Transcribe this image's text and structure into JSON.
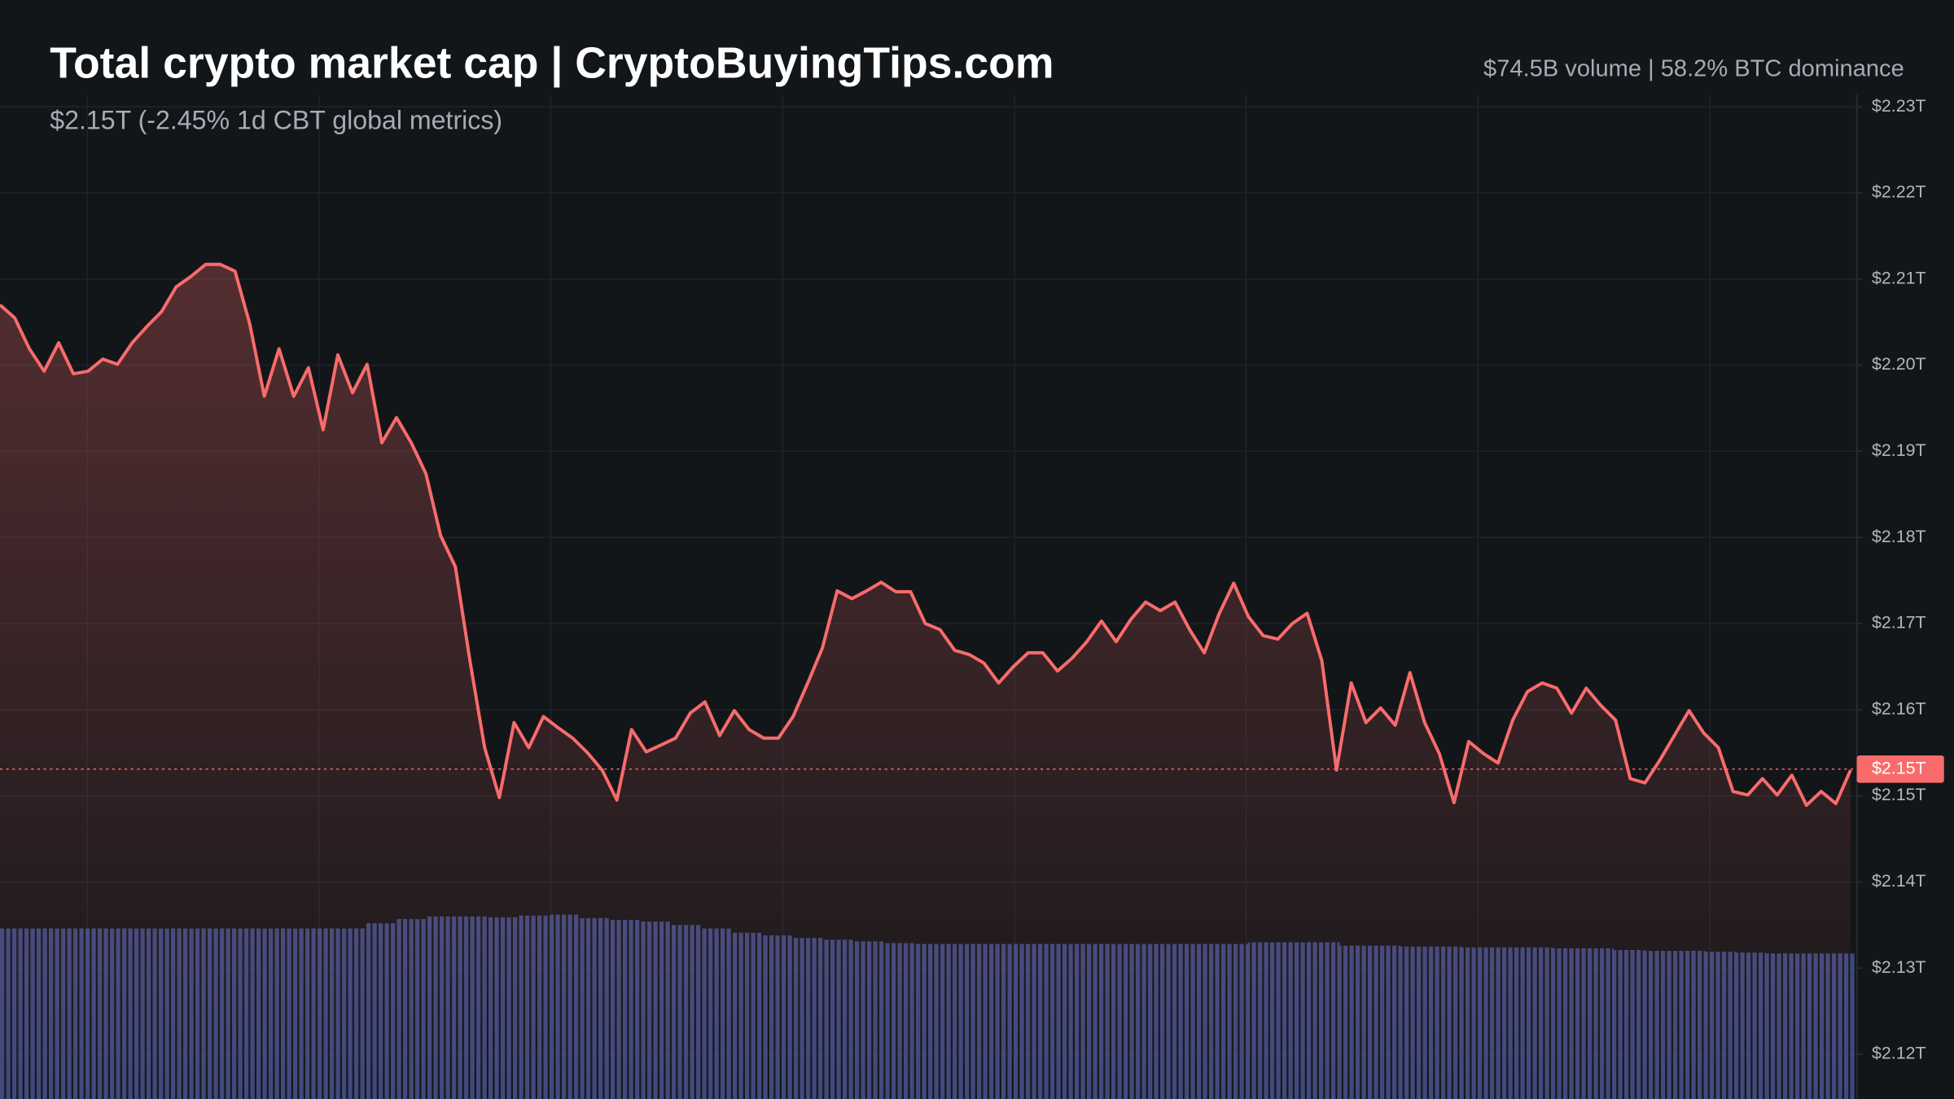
{
  "chart_data": {
    "type": "area",
    "title": "Total crypto market cap | CryptoBuyingTips.com",
    "subtitle": "$2.15T (-2.45% 1d CBT global metrics)",
    "stats": "$74.5B volume | 58.2% BTC dominance",
    "color": "#f96b6b",
    "values": [
      2.207,
      2.2055,
      2.2019,
      2.1993,
      2.2026,
      2.199,
      2.1993,
      2.2007,
      2.2001,
      2.2026,
      2.2045,
      2.2062,
      2.2091,
      2.2103,
      2.2117,
      2.2117,
      2.2109,
      2.2048,
      2.1964,
      2.2019,
      2.1964,
      2.1997,
      2.1925,
      2.2012,
      2.1968,
      2.2001,
      2.191,
      2.1939,
      2.191,
      2.1874,
      2.1802,
      2.1766,
      2.1657,
      2.1556,
      2.1498,
      2.1585,
      2.1556,
      2.1592,
      2.1579,
      2.1567,
      2.155,
      2.153,
      2.1495,
      2.1577,
      2.1551,
      2.1559,
      2.1567,
      2.1596,
      2.1609,
      2.157,
      2.1599,
      2.1577,
      2.1567,
      2.1567,
      2.1592,
      2.1631,
      2.1672,
      2.1738,
      2.1729,
      2.1738,
      2.1748,
      2.1737,
      2.1737,
      2.17,
      2.1693,
      2.1669,
      2.1664,
      2.1654,
      2.1631,
      2.165,
      2.1666,
      2.1666,
      2.1645,
      2.166,
      2.1679,
      2.1703,
      2.1679,
      2.1705,
      2.1725,
      2.1715,
      2.1725,
      2.1693,
      2.1666,
      2.1711,
      2.1747,
      2.1708,
      2.1686,
      2.1682,
      2.17,
      2.1712,
      2.1657,
      2.153,
      2.1631,
      2.1585,
      2.1602,
      2.1582,
      2.1643,
      2.1585,
      2.1549,
      2.1492,
      2.1563,
      2.1549,
      2.1538,
      2.1588,
      2.1621,
      2.1631,
      2.1625,
      2.1596,
      2.1625,
      2.1605,
      2.1588,
      2.152,
      2.1515,
      2.1541,
      2.157,
      2.1599,
      2.1573,
      2.1556,
      2.1505,
      2.1501,
      2.152,
      2.1501,
      2.1524,
      2.1489,
      2.1505,
      2.1491,
      2.153
    ],
    "volume": {
      "color": "#3d4c84",
      "values": [
        2.1346,
        2.1346,
        2.1346,
        2.1346,
        2.1346,
        2.1346,
        2.1346,
        2.1346,
        2.1346,
        2.1346,
        2.1346,
        2.1346,
        2.1352,
        2.1357,
        2.136,
        2.136,
        2.1359,
        2.1361,
        2.1362,
        2.1358,
        2.1356,
        2.1354,
        2.135,
        2.1346,
        2.1341,
        2.1338,
        2.1335,
        2.1333,
        2.1331,
        2.1329,
        2.1328,
        2.1328,
        2.1328,
        2.1328,
        2.1328,
        2.1328,
        2.1328,
        2.1328,
        2.1328,
        2.1328,
        2.1328,
        2.133,
        2.133,
        2.133,
        2.1326,
        2.1326,
        2.1325,
        2.1325,
        2.1324,
        2.1324,
        2.1324,
        2.1323,
        2.1323,
        2.1321,
        2.132,
        2.132,
        2.1319,
        2.1318,
        2.1317,
        2.1317,
        2.1317
      ]
    },
    "last_price": {
      "value": 2.1531,
      "label": "$2.15T"
    },
    "ylim": [
      2.1148,
      2.2424
    ],
    "yticks": [
      {
        "value": 2.12,
        "label": "$2.12T"
      },
      {
        "value": 2.13,
        "label": "$2.13T"
      },
      {
        "value": 2.14,
        "label": "$2.14T"
      },
      {
        "value": 2.15,
        "label": "$2.15T"
      },
      {
        "value": 2.16,
        "label": "$2.16T"
      },
      {
        "value": 2.17,
        "label": "$2.17T"
      },
      {
        "value": 2.18,
        "label": "$2.18T"
      },
      {
        "value": 2.19,
        "label": "$2.19T"
      },
      {
        "value": 2.2,
        "label": "$2.20T"
      },
      {
        "value": 2.21,
        "label": "$2.21T"
      },
      {
        "value": 2.22,
        "label": "$2.22T"
      },
      {
        "value": 2.23,
        "label": "$2.23T"
      }
    ],
    "grid": true
  }
}
